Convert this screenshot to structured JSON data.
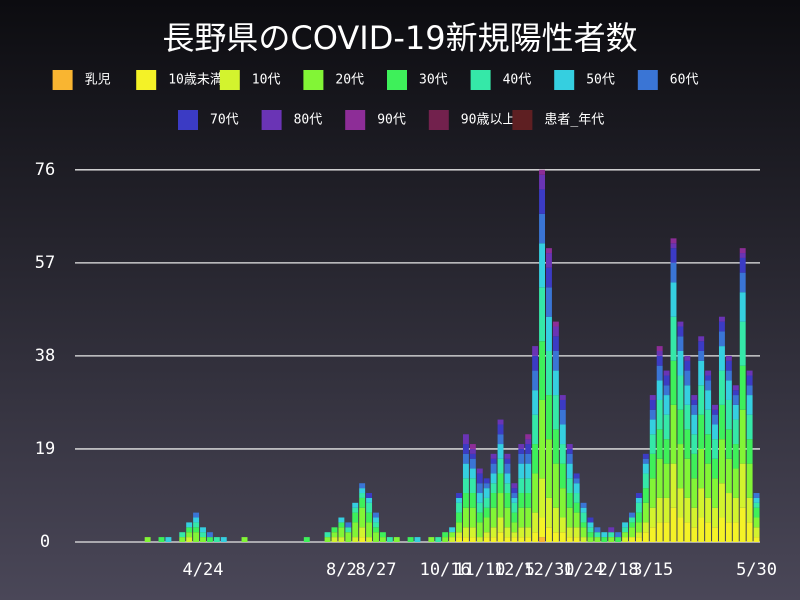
{
  "chart_data": {
    "type": "stacked_bar",
    "title": "長野県のCOVID-19新規陽性者数",
    "categories": [
      null,
      null,
      null,
      null,
      null,
      null,
      null,
      null,
      null,
      null,
      null,
      null,
      null,
      null,
      null,
      null,
      null,
      null,
      "4/24",
      null,
      null,
      null,
      null,
      null,
      null,
      null,
      null,
      null,
      null,
      null,
      null,
      null,
      null,
      null,
      null,
      null,
      null,
      null,
      "8/2",
      null,
      null,
      null,
      null,
      "8/27",
      null,
      null,
      null,
      null,
      null,
      null,
      null,
      null,
      null,
      "10/16",
      null,
      null,
      null,
      null,
      "11/10",
      null,
      null,
      null,
      null,
      "12/5",
      null,
      null,
      null,
      null,
      "12/30",
      null,
      null,
      null,
      null,
      "1/24",
      null,
      null,
      null,
      null,
      "2/18",
      null,
      null,
      null,
      null,
      "3/15",
      null,
      null,
      null,
      null,
      null,
      null,
      null,
      null,
      null,
      null,
      null,
      null,
      null,
      null,
      "5/30"
    ],
    "ylim": [
      0,
      78
    ],
    "yticks": [
      0,
      19,
      38,
      57,
      76
    ],
    "grid": true,
    "series": [
      {
        "name": "乳児",
        "color": "#f9b531",
        "values": [
          0,
          0,
          0,
          0,
          0,
          0,
          0,
          0,
          0,
          0,
          0,
          0,
          0,
          0,
          0,
          0,
          0,
          0,
          0,
          0,
          0,
          0,
          0,
          0,
          0,
          0,
          0,
          0,
          0,
          0,
          0,
          0,
          0,
          0,
          0,
          0,
          0,
          0,
          0,
          0,
          0,
          0,
          0,
          0,
          0,
          0,
          0,
          0,
          0,
          0,
          0,
          0,
          0,
          0,
          0,
          0,
          0,
          0,
          0,
          0,
          0,
          0,
          0,
          0,
          0,
          0,
          0,
          1,
          0,
          0,
          0,
          0,
          0,
          0,
          0,
          0,
          0,
          0,
          0,
          0,
          0,
          0,
          0,
          0,
          0,
          0,
          0,
          0,
          0,
          0,
          0,
          0,
          0,
          0,
          0,
          0,
          0,
          0,
          0
        ]
      },
      {
        "name": "10歳未満",
        "color": "#f4f227",
        "values": [
          0,
          0,
          0,
          0,
          0,
          0,
          0,
          0,
          0,
          0,
          0,
          0,
          0,
          0,
          0,
          0,
          0,
          0,
          0,
          0,
          0,
          0,
          0,
          0,
          0,
          0,
          0,
          0,
          0,
          0,
          0,
          0,
          0,
          0,
          0,
          0,
          0,
          0,
          0,
          0,
          0,
          1,
          0,
          0,
          0,
          0,
          0,
          0,
          0,
          0,
          0,
          0,
          0,
          0,
          0,
          1,
          1,
          1,
          0,
          1,
          1,
          2,
          1,
          1,
          1,
          1,
          2,
          4,
          3,
          2,
          2,
          1,
          1,
          0,
          0,
          0,
          0,
          0,
          0,
          0,
          1,
          1,
          2,
          3,
          4,
          4,
          7,
          5,
          4,
          3,
          5,
          4,
          3,
          5,
          4,
          4,
          7,
          4,
          1
        ]
      },
      {
        "name": "10代",
        "color": "#d3f32e",
        "values": [
          0,
          0,
          0,
          0,
          0,
          0,
          0,
          0,
          0,
          0,
          0,
          0,
          0,
          0,
          0,
          0,
          1,
          0,
          0,
          0,
          0,
          0,
          0,
          0,
          0,
          0,
          0,
          0,
          0,
          0,
          0,
          0,
          0,
          0,
          0,
          0,
          0,
          1,
          1,
          0,
          1,
          2,
          1,
          0,
          0,
          0,
          0,
          0,
          0,
          0,
          0,
          0,
          0,
          0,
          1,
          1,
          2,
          2,
          1,
          1,
          2,
          3,
          2,
          1,
          2,
          2,
          4,
          8,
          6,
          5,
          3,
          2,
          2,
          1,
          0,
          0,
          0,
          0,
          0,
          1,
          0,
          1,
          2,
          4,
          5,
          5,
          9,
          6,
          5,
          4,
          6,
          5,
          4,
          7,
          6,
          5,
          9,
          5,
          2
        ]
      },
      {
        "name": "20代",
        "color": "#82f536",
        "values": [
          0,
          0,
          0,
          0,
          0,
          0,
          0,
          0,
          0,
          0,
          1,
          0,
          0,
          0,
          0,
          1,
          1,
          2,
          1,
          0,
          0,
          0,
          0,
          0,
          1,
          0,
          0,
          0,
          0,
          0,
          0,
          0,
          0,
          0,
          0,
          0,
          1,
          1,
          2,
          2,
          3,
          4,
          3,
          2,
          1,
          0,
          1,
          0,
          0,
          0,
          0,
          1,
          0,
          1,
          1,
          2,
          4,
          4,
          3,
          3,
          4,
          5,
          4,
          2,
          4,
          4,
          8,
          16,
          12,
          9,
          6,
          4,
          3,
          2,
          1,
          1,
          0,
          1,
          0,
          1,
          2,
          2,
          4,
          6,
          8,
          7,
          12,
          9,
          8,
          6,
          8,
          7,
          6,
          9,
          7,
          6,
          11,
          7,
          2
        ]
      },
      {
        "name": "30代",
        "color": "#3ef05a",
        "values": [
          0,
          0,
          0,
          0,
          0,
          0,
          0,
          0,
          0,
          0,
          0,
          0,
          1,
          0,
          0,
          0,
          1,
          1,
          0,
          1,
          0,
          0,
          0,
          0,
          0,
          0,
          0,
          0,
          0,
          0,
          0,
          0,
          0,
          1,
          0,
          0,
          0,
          1,
          1,
          0,
          2,
          2,
          2,
          1,
          1,
          0,
          0,
          0,
          1,
          0,
          0,
          0,
          0,
          1,
          0,
          2,
          3,
          3,
          2,
          2,
          3,
          4,
          3,
          2,
          3,
          3,
          6,
          12,
          9,
          7,
          5,
          3,
          2,
          1,
          1,
          0,
          1,
          0,
          1,
          0,
          1,
          2,
          3,
          5,
          6,
          5,
          9,
          7,
          6,
          5,
          7,
          6,
          4,
          7,
          6,
          5,
          9,
          5,
          2
        ]
      },
      {
        "name": "40代",
        "color": "#35e8a8",
        "values": [
          0,
          0,
          0,
          0,
          0,
          0,
          0,
          0,
          0,
          0,
          0,
          0,
          0,
          0,
          0,
          1,
          0,
          1,
          1,
          0,
          1,
          0,
          0,
          0,
          0,
          0,
          0,
          0,
          0,
          0,
          0,
          0,
          0,
          0,
          0,
          0,
          1,
          0,
          0,
          1,
          1,
          1,
          2,
          1,
          0,
          1,
          0,
          0,
          0,
          0,
          0,
          0,
          1,
          0,
          0,
          2,
          3,
          3,
          2,
          2,
          2,
          3,
          2,
          2,
          3,
          3,
          6,
          11,
          9,
          7,
          4,
          3,
          2,
          2,
          1,
          1,
          0,
          1,
          0,
          1,
          1,
          2,
          3,
          4,
          6,
          5,
          9,
          7,
          5,
          4,
          6,
          5,
          4,
          7,
          6,
          5,
          9,
          5,
          1
        ]
      },
      {
        "name": "50代",
        "color": "#35cfe0",
        "values": [
          0,
          0,
          0,
          0,
          0,
          0,
          0,
          0,
          0,
          0,
          0,
          0,
          0,
          1,
          0,
          0,
          1,
          1,
          1,
          0,
          0,
          1,
          0,
          0,
          0,
          0,
          0,
          0,
          0,
          0,
          0,
          0,
          0,
          0,
          0,
          0,
          0,
          0,
          1,
          0,
          1,
          1,
          1,
          1,
          0,
          0,
          0,
          0,
          0,
          1,
          0,
          0,
          0,
          0,
          1,
          1,
          3,
          2,
          2,
          2,
          2,
          3,
          2,
          1,
          3,
          3,
          5,
          9,
          7,
          5,
          4,
          3,
          2,
          1,
          1,
          0,
          1,
          0,
          0,
          1,
          0,
          1,
          2,
          3,
          4,
          4,
          7,
          5,
          4,
          4,
          5,
          4,
          3,
          5,
          4,
          3,
          6,
          4,
          1
        ]
      },
      {
        "name": "60代",
        "color": "#3a75d5",
        "values": [
          0,
          0,
          0,
          0,
          0,
          0,
          0,
          0,
          0,
          0,
          0,
          0,
          0,
          0,
          0,
          0,
          0,
          1,
          0,
          1,
          0,
          0,
          0,
          0,
          0,
          0,
          0,
          0,
          0,
          0,
          0,
          0,
          0,
          0,
          0,
          0,
          0,
          0,
          0,
          1,
          0,
          1,
          0,
          1,
          0,
          0,
          0,
          0,
          0,
          0,
          0,
          0,
          0,
          0,
          0,
          0,
          2,
          2,
          2,
          1,
          2,
          2,
          2,
          1,
          2,
          2,
          4,
          6,
          6,
          4,
          3,
          2,
          1,
          1,
          0,
          1,
          0,
          0,
          1,
          0,
          1,
          0,
          1,
          2,
          3,
          2,
          4,
          3,
          3,
          2,
          2,
          2,
          2,
          3,
          2,
          2,
          4,
          2,
          1
        ]
      },
      {
        "name": "70代",
        "color": "#3b3bc4",
        "values": [
          0,
          0,
          0,
          0,
          0,
          0,
          0,
          0,
          0,
          0,
          0,
          0,
          0,
          0,
          0,
          0,
          0,
          0,
          0,
          0,
          0,
          0,
          0,
          0,
          0,
          0,
          0,
          0,
          0,
          0,
          0,
          0,
          0,
          0,
          0,
          0,
          0,
          0,
          0,
          0,
          0,
          0,
          1,
          0,
          0,
          0,
          0,
          0,
          0,
          0,
          0,
          0,
          0,
          0,
          0,
          1,
          2,
          1,
          2,
          1,
          1,
          2,
          1,
          1,
          1,
          2,
          3,
          5,
          4,
          3,
          2,
          1,
          1,
          0,
          1,
          0,
          0,
          0,
          0,
          0,
          0,
          1,
          1,
          2,
          2,
          2,
          3,
          2,
          2,
          1,
          2,
          1,
          1,
          2,
          2,
          1,
          3,
          2,
          0
        ]
      },
      {
        "name": "80代",
        "color": "#6a34b5",
        "values": [
          0,
          0,
          0,
          0,
          0,
          0,
          0,
          0,
          0,
          0,
          0,
          0,
          0,
          0,
          0,
          0,
          0,
          0,
          0,
          0,
          0,
          0,
          0,
          0,
          0,
          0,
          0,
          0,
          0,
          0,
          0,
          0,
          0,
          0,
          0,
          0,
          0,
          0,
          0,
          0,
          0,
          0,
          0,
          0,
          0,
          0,
          0,
          0,
          0,
          0,
          0,
          0,
          0,
          0,
          0,
          0,
          2,
          1,
          1,
          0,
          1,
          1,
          1,
          1,
          1,
          1,
          2,
          3,
          3,
          2,
          1,
          1,
          0,
          0,
          0,
          0,
          0,
          1,
          0,
          0,
          0,
          0,
          0,
          1,
          1,
          1,
          1,
          1,
          1,
          1,
          1,
          1,
          1,
          1,
          1,
          1,
          1,
          1,
          0
        ]
      },
      {
        "name": "90代",
        "color": "#8d2d97",
        "values": [
          0,
          0,
          0,
          0,
          0,
          0,
          0,
          0,
          0,
          0,
          0,
          0,
          0,
          0,
          0,
          0,
          0,
          0,
          0,
          0,
          0,
          0,
          0,
          0,
          0,
          0,
          0,
          0,
          0,
          0,
          0,
          0,
          0,
          0,
          0,
          0,
          0,
          0,
          0,
          0,
          0,
          0,
          0,
          0,
          0,
          0,
          0,
          0,
          0,
          0,
          0,
          0,
          0,
          0,
          0,
          0,
          0,
          1,
          0,
          0,
          0,
          0,
          0,
          0,
          0,
          1,
          0,
          1,
          1,
          1,
          0,
          0,
          0,
          0,
          0,
          0,
          0,
          0,
          0,
          0,
          0,
          0,
          0,
          0,
          1,
          0,
          1,
          0,
          0,
          0,
          0,
          0,
          0,
          0,
          0,
          0,
          1,
          0,
          0
        ]
      },
      {
        "name": "90歳以上",
        "color": "#72214d",
        "values": [
          0,
          0,
          0,
          0,
          0,
          0,
          0,
          0,
          0,
          0,
          0,
          0,
          0,
          0,
          0,
          0,
          0,
          0,
          0,
          0,
          0,
          0,
          0,
          0,
          0,
          0,
          0,
          0,
          0,
          0,
          0,
          0,
          0,
          0,
          0,
          0,
          0,
          0,
          0,
          0,
          0,
          0,
          0,
          0,
          0,
          0,
          0,
          0,
          0,
          0,
          0,
          0,
          0,
          0,
          0,
          0,
          0,
          0,
          0,
          0,
          0,
          0,
          0,
          0,
          0,
          0,
          0,
          0,
          0,
          0,
          0,
          0,
          0,
          0,
          0,
          0,
          0,
          0,
          0,
          0,
          0,
          0,
          0,
          0,
          0,
          0,
          0,
          0,
          0,
          0,
          0,
          0,
          0,
          0,
          0,
          0,
          0,
          0,
          0
        ]
      },
      {
        "name": "患者_年代",
        "color": "#5e1f22",
        "values": [
          0,
          0,
          0,
          0,
          0,
          0,
          0,
          0,
          0,
          0,
          0,
          0,
          0,
          0,
          0,
          0,
          0,
          0,
          0,
          0,
          0,
          0,
          0,
          0,
          0,
          0,
          0,
          0,
          0,
          0,
          0,
          0,
          0,
          0,
          0,
          0,
          0,
          0,
          0,
          0,
          0,
          0,
          0,
          0,
          0,
          0,
          0,
          0,
          0,
          0,
          0,
          0,
          0,
          0,
          0,
          0,
          0,
          0,
          0,
          0,
          0,
          0,
          0,
          0,
          0,
          0,
          0,
          0,
          0,
          0,
          0,
          0,
          0,
          0,
          0,
          0,
          0,
          0,
          0,
          0,
          0,
          0,
          0,
          0,
          0,
          0,
          0,
          0,
          0,
          0,
          0,
          0,
          0,
          0,
          0,
          0,
          0,
          0,
          0
        ]
      }
    ]
  }
}
